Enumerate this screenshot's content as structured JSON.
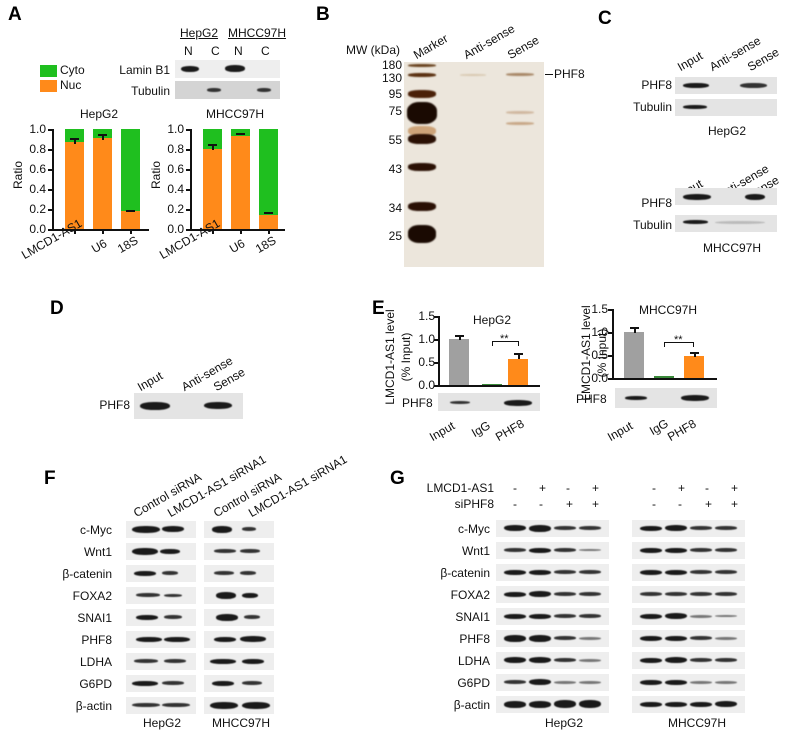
{
  "figure": {
    "panels": {
      "A": {
        "letter": "A",
        "legend": {
          "items": [
            {
              "label": "Cyto",
              "color": "#1fbf1f"
            },
            {
              "label": "Nuc",
              "color": "#ff8a1a"
            }
          ]
        },
        "blot": {
          "cell_headers": [
            "HepG2",
            "MHCC97H"
          ],
          "lane_labels": [
            "N",
            "C",
            "N",
            "C"
          ],
          "row_labels": [
            "Lamin B1",
            "Tubulin"
          ]
        },
        "charts": [
          {
            "title": "HepG2",
            "ylabel": "Ratio"
          },
          {
            "title": "MHCC97H",
            "ylabel": "Ratio"
          }
        ],
        "yticks": [
          "1.0",
          "0.8",
          "0.6",
          "0.4",
          "0.2",
          "0.0"
        ],
        "xticks": [
          "LMCD1-AS1",
          "U6",
          "18S"
        ]
      },
      "B": {
        "letter": "B",
        "mw_label": "MW (kDa)",
        "lane_labels": [
          "Marker",
          "Anti-sense",
          "Sense"
        ],
        "mw_markers": [
          "180",
          "130",
          "95",
          "75",
          "55",
          "43",
          "34",
          "25"
        ],
        "band_label": "PHF8"
      },
      "C": {
        "letter": "C",
        "lane_labels": [
          "Input",
          "Anti-sense",
          "Sense"
        ],
        "row_labels": [
          "PHF8",
          "Tubulin"
        ],
        "cells": [
          "HepG2",
          "MHCC97H"
        ]
      },
      "D": {
        "letter": "D",
        "lane_labels": [
          "Input",
          "Anti-sense",
          "Sense"
        ],
        "row_label": "PHF8"
      },
      "E": {
        "letter": "E",
        "ylabel_line1": "LMCD1-AS1 level",
        "ylabel_line2": "(% Input)",
        "yticks": [
          "1.5",
          "1.0",
          "0.5",
          "0.0"
        ],
        "xticks": [
          "Input",
          "IgG",
          "PHF8"
        ],
        "significance": "**",
        "blot_label": "PHF8",
        "charts": [
          {
            "title": "HepG2"
          },
          {
            "title": "MHCC97H"
          }
        ]
      },
      "F": {
        "letter": "F",
        "lane_labels": [
          "Control siRNA",
          "LMCD1-AS1 siRNA1",
          "Control siRNA",
          "LMCD1-AS1 siRNA1"
        ],
        "row_labels": [
          "c-Myc",
          "Wnt1",
          "β-catenin",
          "FOXA2",
          "SNAI1",
          "PHF8",
          "LDHA",
          "G6PD",
          "β-actin"
        ],
        "cells": [
          "HepG2",
          "MHCC97H"
        ]
      },
      "G": {
        "letter": "G",
        "conditions": [
          {
            "label": "LMCD1-AS1",
            "values": [
              "-",
              "+",
              "-",
              "+",
              "-",
              "+",
              "-",
              "+"
            ]
          },
          {
            "label": "siPHF8",
            "values": [
              "-",
              "-",
              "+",
              "+",
              "-",
              "-",
              "+",
              "+"
            ]
          }
        ],
        "row_labels": [
          "c-Myc",
          "Wnt1",
          "β-catenin",
          "FOXA2",
          "SNAI1",
          "PHF8",
          "LDHA",
          "G6PD",
          "β-actin"
        ],
        "cells": [
          "HepG2",
          "MHCC97H"
        ]
      }
    }
  },
  "chart_data": [
    {
      "type": "bar",
      "stacked": true,
      "title": "HepG2",
      "categories": [
        "LMCD1-AS1",
        "U6",
        "18S"
      ],
      "series": [
        {
          "name": "Nuc",
          "color": "#ff8a1a",
          "values": [
            0.87,
            0.91,
            0.18
          ],
          "error": [
            0.03,
            0.03,
            0.01
          ]
        },
        {
          "name": "Cyto",
          "color": "#1fbf1f",
          "values": [
            0.13,
            0.09,
            0.82
          ]
        }
      ],
      "xlabel": "",
      "ylabel": "Ratio",
      "ylim": [
        0,
        1.0
      ],
      "yticks": [
        0,
        0.2,
        0.4,
        0.6,
        0.8,
        1.0
      ],
      "legend": [
        "Cyto",
        "Nuc"
      ],
      "grid": false
    },
    {
      "type": "bar",
      "stacked": true,
      "title": "MHCC97H",
      "categories": [
        "LMCD1-AS1",
        "U6",
        "18S"
      ],
      "series": [
        {
          "name": "Nuc",
          "color": "#ff8a1a",
          "values": [
            0.8,
            0.93,
            0.14
          ],
          "error": [
            0.03,
            0.01,
            0.01
          ]
        },
        {
          "name": "Cyto",
          "color": "#1fbf1f",
          "values": [
            0.2,
            0.07,
            0.86
          ]
        }
      ],
      "xlabel": "",
      "ylabel": "Ratio",
      "ylim": [
        0,
        1.0
      ],
      "yticks": [
        0,
        0.2,
        0.4,
        0.6,
        0.8,
        1.0
      ],
      "legend": [
        "Cyto",
        "Nuc"
      ],
      "grid": false
    },
    {
      "type": "bar",
      "title": "HepG2",
      "categories": [
        "Input",
        "IgG",
        "PHF8"
      ],
      "values": [
        1.0,
        0.01,
        0.56
      ],
      "error": [
        0.08,
        0.0,
        0.11
      ],
      "colors": [
        "#a0a0a0",
        "#3a8a3a",
        "#ff8a1a"
      ],
      "xlabel": "",
      "ylabel": "LMCD1-AS1 level (% Input)",
      "ylim": [
        0,
        1.5
      ],
      "yticks": [
        0,
        0.5,
        1.0,
        1.5
      ],
      "annotations": [
        {
          "text": "**",
          "between": [
            "IgG",
            "PHF8"
          ]
        }
      ]
    },
    {
      "type": "bar",
      "title": "MHCC97H",
      "categories": [
        "Input",
        "IgG",
        "PHF8"
      ],
      "values": [
        1.0,
        0.03,
        0.49
      ],
      "error": [
        0.12,
        0.01,
        0.08
      ],
      "colors": [
        "#a0a0a0",
        "#3a8a3a",
        "#ff8a1a"
      ],
      "xlabel": "",
      "ylabel": "LMCD1-AS1 level (% Input)",
      "ylim": [
        0,
        1.5
      ],
      "yticks": [
        0,
        0.5,
        1.0,
        1.5
      ],
      "annotations": [
        {
          "text": "**",
          "between": [
            "IgG",
            "PHF8"
          ]
        }
      ]
    }
  ]
}
